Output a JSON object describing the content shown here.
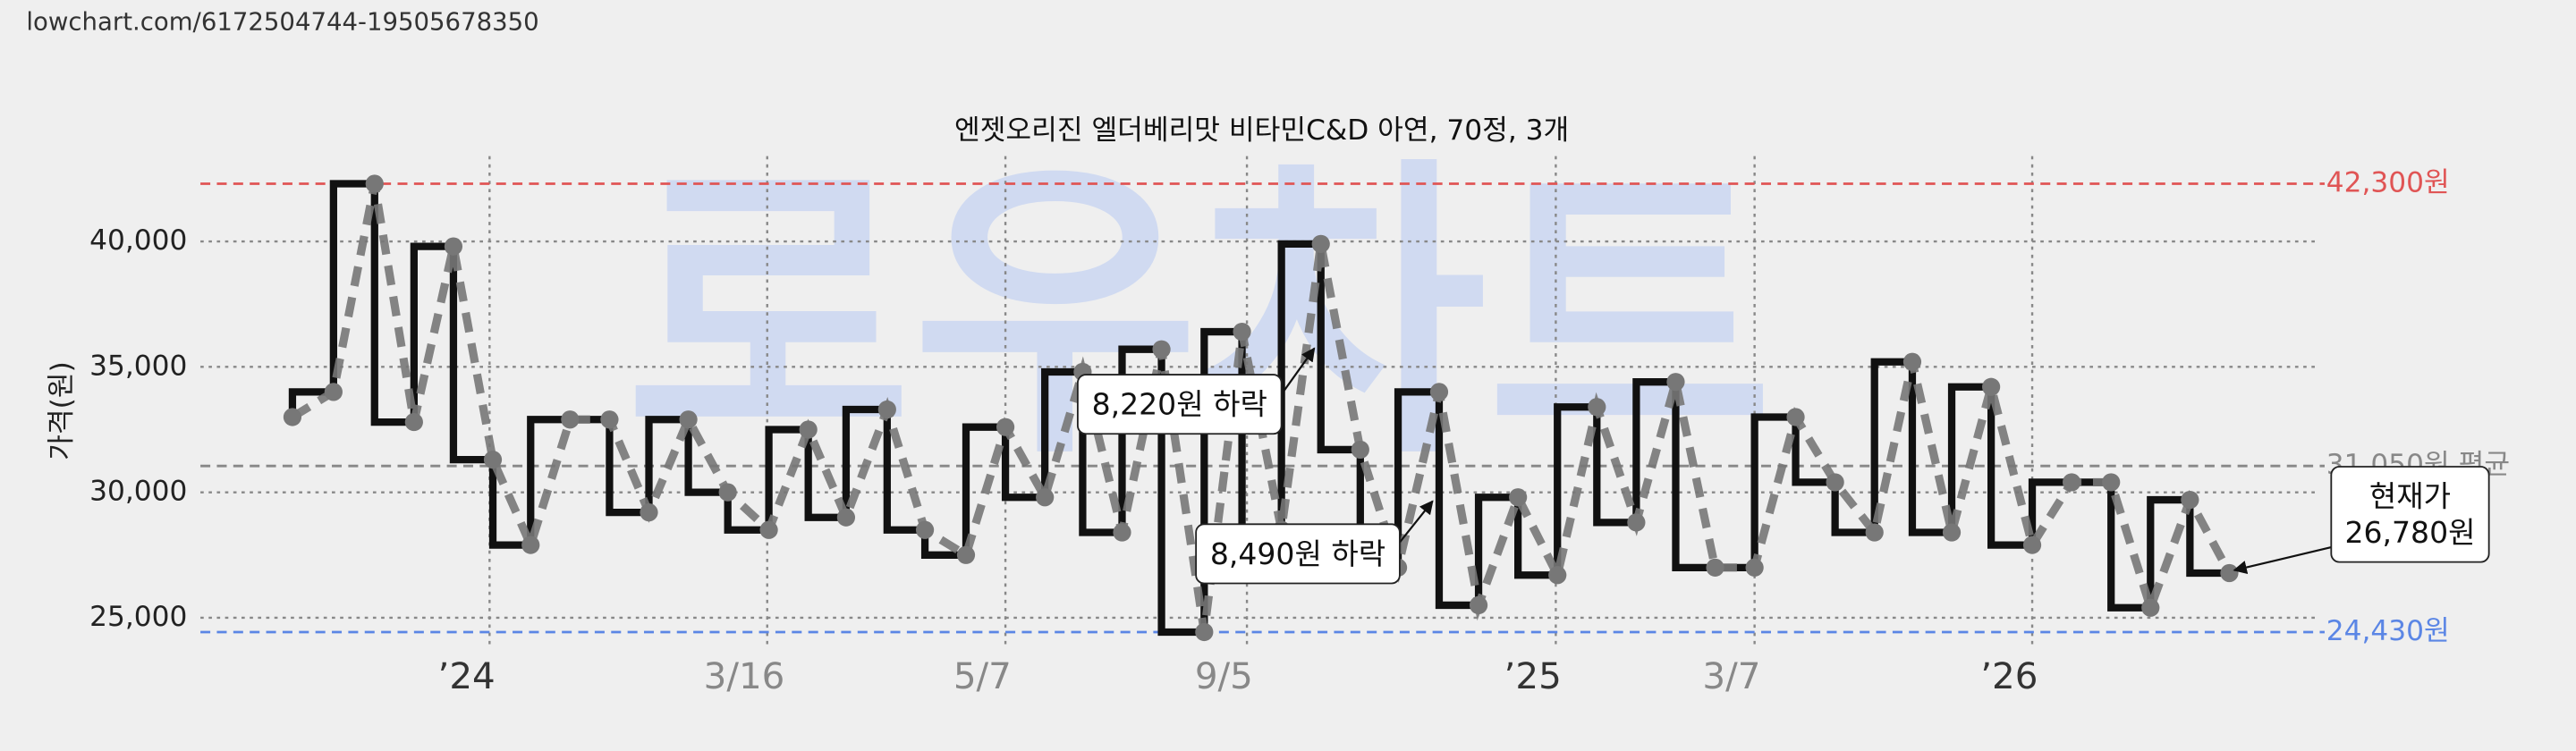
{
  "source_url": "lowchart.com/6172504744-19505678350",
  "watermark": "로우차트",
  "chart_data": {
    "type": "price-step",
    "title": "엔젯오리진 엘더베리맛 비타민C&D 아연, 70정, 3개",
    "y_label": "가격(원)",
    "ylim": [
      23750,
      43400
    ],
    "yticks": [
      {
        "value": 25000,
        "label": "25,000"
      },
      {
        "value": 30000,
        "label": "30,000"
      },
      {
        "value": 35000,
        "label": "35,000"
      },
      {
        "value": 40000,
        "label": "40,000"
      }
    ],
    "xlim": [
      0,
      1288
    ],
    "xticks": [
      {
        "value": 176,
        "label": "’24"
      },
      {
        "value": 345,
        "label": "3/16"
      },
      {
        "value": 490,
        "label": "5/7"
      },
      {
        "value": 637,
        "label": "9/5"
      },
      {
        "value": 825,
        "label": "’25"
      },
      {
        "value": 946,
        "label": "3/7"
      },
      {
        "value": 1115,
        "label": "’26"
      }
    ],
    "grid": true,
    "series": [
      {
        "name": "가격",
        "color": "#777777",
        "step_color": "#111111",
        "x": [
          56,
          81,
          106,
          130,
          154,
          178,
          201,
          225,
          249,
          273,
          297,
          321,
          346,
          370,
          393,
          418,
          441,
          466,
          490,
          514,
          537,
          561,
          585,
          611,
          634,
          658,
          682,
          706,
          729,
          754,
          778,
          802,
          826,
          850,
          874,
          898,
          922,
          946,
          971,
          995,
          1019,
          1042,
          1066,
          1090,
          1115,
          1139,
          1163,
          1187,
          1211,
          1235
        ],
        "values": [
          33000,
          34000,
          42300,
          32800,
          39800,
          31300,
          27900,
          32900,
          32900,
          29200,
          32900,
          30000,
          28500,
          32500,
          29000,
          33300,
          28500,
          27500,
          32600,
          29800,
          34800,
          28400,
          35700,
          24430,
          36400,
          28500,
          39900,
          31700,
          27000,
          34000,
          25500,
          29800,
          26700,
          33400,
          28800,
          34400,
          27000,
          27000,
          33000,
          30400,
          28400,
          35200,
          28400,
          34200,
          27900,
          30400,
          30400,
          25400,
          29700,
          26780
        ]
      }
    ],
    "reference_lines": [
      {
        "value": 42300,
        "label": "42,300원",
        "color": "#e05555"
      },
      {
        "value": 31050,
        "label": "31,050원 평균",
        "color": "#888888"
      },
      {
        "value": 24430,
        "label": "24,430원",
        "color": "#5b86e5"
      }
    ],
    "annotations": [
      {
        "lines": [
          "8,220원 하락"
        ]
      },
      {
        "lines": [
          "8,490원 하락"
        ]
      },
      {
        "lines": [
          "현재가",
          "26,780원"
        ]
      }
    ]
  }
}
